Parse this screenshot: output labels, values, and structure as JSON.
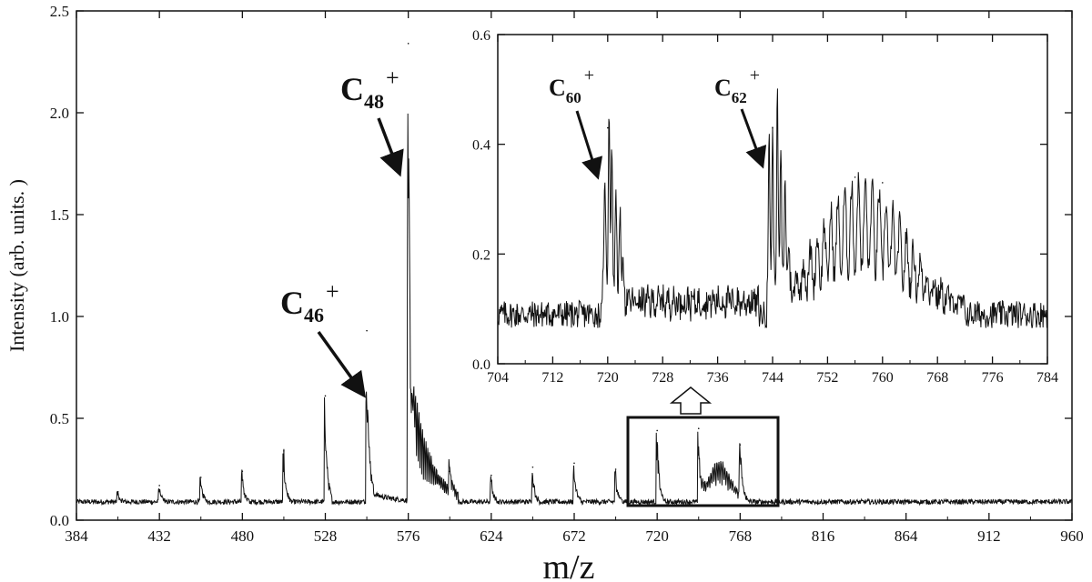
{
  "chart_data": [
    {
      "type": "line",
      "name": "main-spectrum",
      "xlabel": "m/z",
      "ylabel": "Intensity (arb. units. )",
      "xlim": [
        384,
        960
      ],
      "ylim": [
        0.0,
        2.5
      ],
      "xticks": [
        "384",
        "432",
        "480",
        "528",
        "576",
        "624",
        "672",
        "720",
        "768",
        "816",
        "864",
        "912",
        "960"
      ],
      "yticks": [
        "0.0",
        "0.5",
        "1.0",
        "1.5",
        "2.0",
        "2.5"
      ],
      "baseline": 0.09,
      "peaks": [
        {
          "mz": 408,
          "intensity": 0.14
        },
        {
          "mz": 432,
          "intensity": 0.17
        },
        {
          "mz": 456,
          "intensity": 0.21
        },
        {
          "mz": 480,
          "intensity": 0.24
        },
        {
          "mz": 504,
          "intensity": 0.34
        },
        {
          "mz": 528,
          "intensity": 0.61
        },
        {
          "mz": 552,
          "intensity": 0.93
        },
        {
          "mz": 576,
          "intensity": 2.34
        },
        {
          "mz": 600,
          "intensity": 0.24
        },
        {
          "mz": 624,
          "intensity": 0.22
        },
        {
          "mz": 648,
          "intensity": 0.26
        },
        {
          "mz": 672,
          "intensity": 0.28
        },
        {
          "mz": 696,
          "intensity": 0.25
        },
        {
          "mz": 720,
          "intensity": 0.44
        },
        {
          "mz": 744,
          "intensity": 0.45
        },
        {
          "mz": 768,
          "intensity": 0.37
        }
      ],
      "annotations": [
        {
          "base": "C",
          "sub": "46",
          "sup": "+",
          "mz": 552
        },
        {
          "base": "C",
          "sub": "48",
          "sup": "+",
          "mz": 576
        }
      ],
      "zoom_box": {
        "x_range": [
          702,
          787
        ],
        "y_range": [
          0.06,
          0.5
        ]
      }
    },
    {
      "type": "line",
      "name": "inset-spectrum",
      "xlim": [
        704,
        784
      ],
      "ylim": [
        0.0,
        0.6
      ],
      "xticks": [
        "704",
        "712",
        "720",
        "728",
        "736",
        "744",
        "752",
        "760",
        "768",
        "776",
        "784"
      ],
      "yticks": [
        "0.0",
        "0.2",
        "0.4",
        "0.6"
      ],
      "baseline": 0.09,
      "peaks": [
        {
          "mz": 720,
          "intensity": 0.43
        },
        {
          "mz": 744,
          "intensity": 0.43
        },
        {
          "mz": 756,
          "intensity": 0.34
        },
        {
          "mz": 760,
          "intensity": 0.33
        }
      ],
      "annotations": [
        {
          "base": "C",
          "sub": "60",
          "sup": "+",
          "mz": 720
        },
        {
          "base": "C",
          "sub": "62",
          "sup": "+",
          "mz": 744
        }
      ]
    }
  ]
}
